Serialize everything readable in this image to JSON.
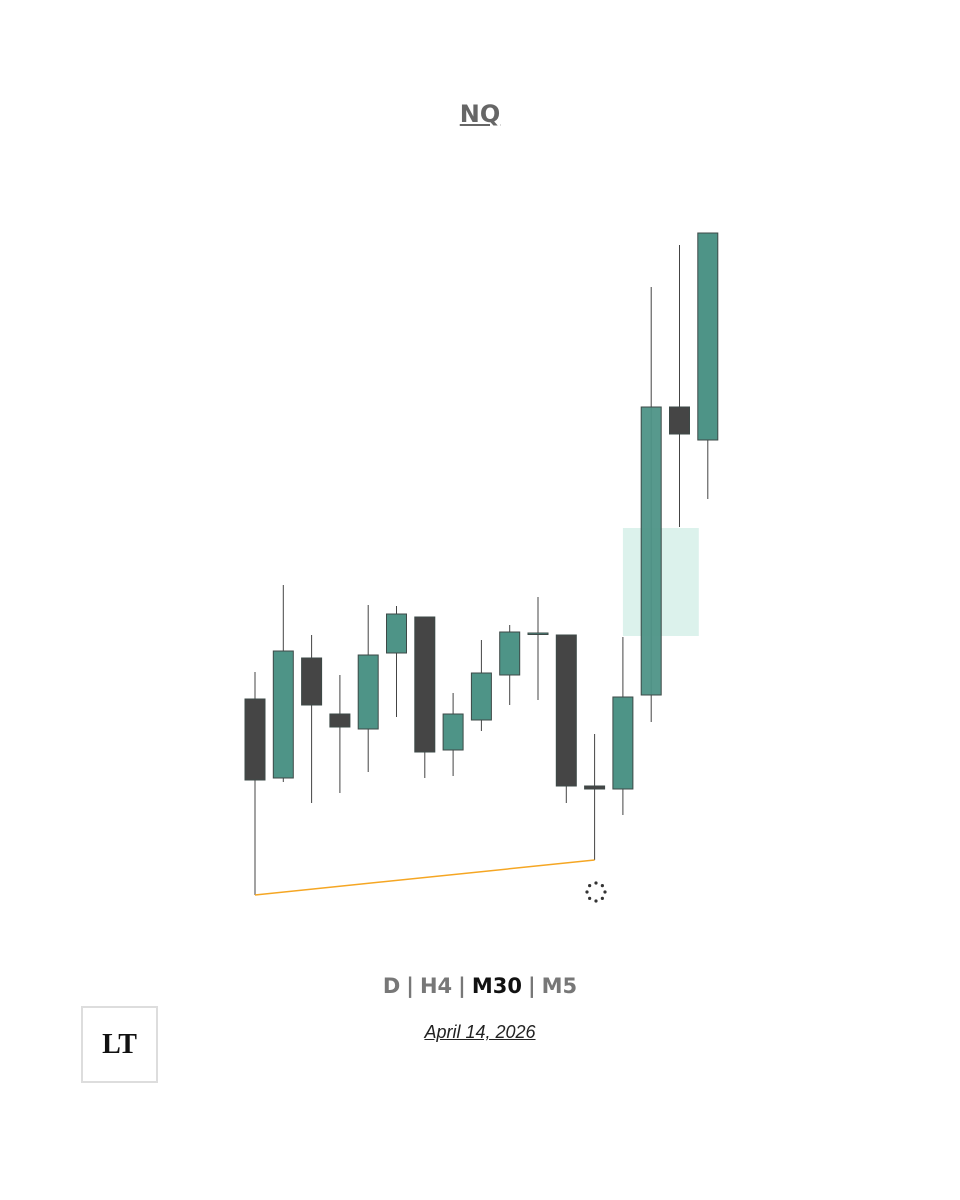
{
  "chart_data": {
    "type": "candlestick",
    "title": "NQ",
    "open": [
      501,
      422,
      542,
      486,
      471,
      547,
      583,
      450,
      480,
      525,
      567,
      565,
      414,
      411,
      505,
      793,
      760
    ],
    "high": [
      528,
      615,
      565,
      525,
      595,
      594,
      583,
      507,
      560,
      575,
      603,
      565,
      466,
      563,
      913,
      955,
      967
    ],
    "low": [
      305,
      418,
      397,
      407,
      428,
      483,
      422,
      424,
      469,
      495,
      500,
      397,
      340,
      385,
      478,
      673,
      701
    ],
    "close": [
      420,
      549,
      495,
      473,
      545,
      586,
      448,
      486,
      527,
      568,
      567,
      414,
      411,
      503,
      793,
      766,
      967
    ],
    "up_color": "#4e9487",
    "down_color": "#454545",
    "ylim": [
      300,
      1000
    ],
    "zone": {
      "top": 672,
      "bottom": 564,
      "color": "#dcf2ec"
    },
    "low_line_color": "#f5a623",
    "timeframes": [
      "D",
      "H4",
      "M30",
      "M5"
    ],
    "separator": "|",
    "active_timeframe": 2,
    "date": "April 14, 2026",
    "logo": "LT"
  }
}
